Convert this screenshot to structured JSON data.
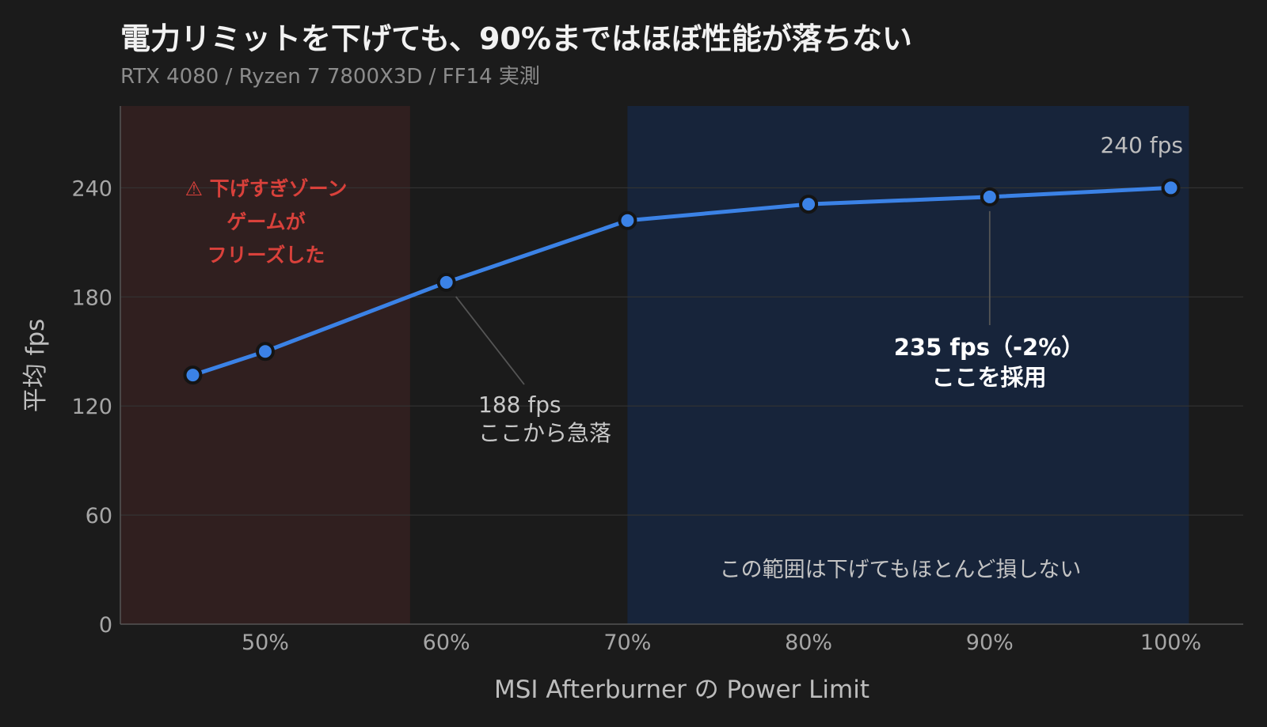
{
  "chart_data": {
    "type": "line",
    "title": "電力リミットを下げても、90%まではほぼ性能が落ちない",
    "subtitle": "RTX 4080 / Ryzen 7 7800X3D / FF14 実測",
    "xlabel": "MSI Afterburner の Power Limit",
    "ylabel": "平均 fps",
    "x_ticks": [
      "50%",
      "60%",
      "70%",
      "80%",
      "90%",
      "100%"
    ],
    "x_tick_values": [
      50,
      60,
      70,
      80,
      90,
      100
    ],
    "y_ticks": [
      "0",
      "60",
      "120",
      "180",
      "240"
    ],
    "y_tick_values": [
      0,
      60,
      120,
      180,
      240
    ],
    "xlim": [
      42,
      104
    ],
    "ylim": [
      0,
      285
    ],
    "grid": "horizontal",
    "series": [
      {
        "x": [
          46,
          50,
          60,
          70,
          80,
          90,
          100
        ],
        "y": [
          137,
          150,
          188,
          222,
          231,
          235,
          240
        ]
      }
    ],
    "regions": [
      {
        "x_range": [
          42,
          58
        ],
        "color": "#301f1f",
        "lines": [
          "⚠ 下げすぎゾーン",
          "ゲームが",
          "フリーズした"
        ]
      },
      {
        "x_range": [
          70,
          101
        ],
        "color": "#17243a",
        "note": "この範囲は下げてもほとんど損しない"
      }
    ],
    "annotations": [
      {
        "lines": [
          "188 fps",
          "ここから急落"
        ],
        "point": [
          60,
          188
        ]
      },
      {
        "lines": [
          "235 fps（-2%）",
          "ここを採用"
        ],
        "point": [
          90,
          235
        ]
      },
      {
        "lines": [
          "240 fps"
        ],
        "point": [
          100,
          240
        ]
      }
    ],
    "colors": {
      "line": "#3b82e6",
      "marker_edge": "#141414",
      "danger_text": "#d9413b",
      "grid": "#333333",
      "background": "#1b1b1b"
    }
  }
}
